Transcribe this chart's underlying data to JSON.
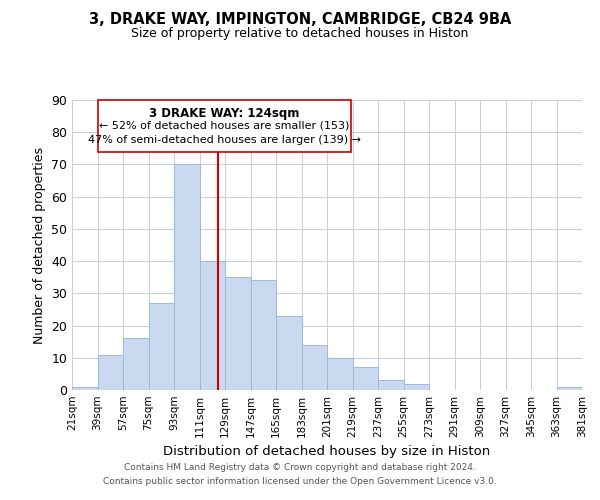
{
  "title": "3, DRAKE WAY, IMPINGTON, CAMBRIDGE, CB24 9BA",
  "subtitle": "Size of property relative to detached houses in Histon",
  "xlabel": "Distribution of detached houses by size in Histon",
  "ylabel": "Number of detached properties",
  "bar_color": "#c8d9f0",
  "bar_edgecolor": "#a0b8d8",
  "bins": [
    21,
    39,
    57,
    75,
    93,
    111,
    129,
    147,
    165,
    183,
    201,
    219,
    237,
    255,
    273,
    291,
    309,
    327,
    345,
    363,
    381
  ],
  "counts": [
    1,
    11,
    16,
    27,
    70,
    40,
    35,
    34,
    23,
    14,
    10,
    7,
    3,
    2,
    0,
    0,
    0,
    0,
    0,
    1
  ],
  "property_size": 124,
  "property_line_color": "#cc0000",
  "annotation_title": "3 DRAKE WAY: 124sqm",
  "annotation_line1": "← 52% of detached houses are smaller (153)",
  "annotation_line2": "47% of semi-detached houses are larger (139) →",
  "ylim": [
    0,
    90
  ],
  "yticks": [
    0,
    10,
    20,
    30,
    40,
    50,
    60,
    70,
    80,
    90
  ],
  "xtick_labels": [
    "21sqm",
    "39sqm",
    "57sqm",
    "75sqm",
    "93sqm",
    "111sqm",
    "129sqm",
    "147sqm",
    "165sqm",
    "183sqm",
    "201sqm",
    "219sqm",
    "237sqm",
    "255sqm",
    "273sqm",
    "291sqm",
    "309sqm",
    "327sqm",
    "345sqm",
    "363sqm",
    "381sqm"
  ],
  "footer_line1": "Contains HM Land Registry data © Crown copyright and database right 2024.",
  "footer_line2": "Contains public sector information licensed under the Open Government Licence v3.0.",
  "background_color": "#ffffff",
  "grid_color": "#c8d0dc",
  "annotation_box_color": "#ffffff",
  "annotation_box_edgecolor": "#cc0000"
}
